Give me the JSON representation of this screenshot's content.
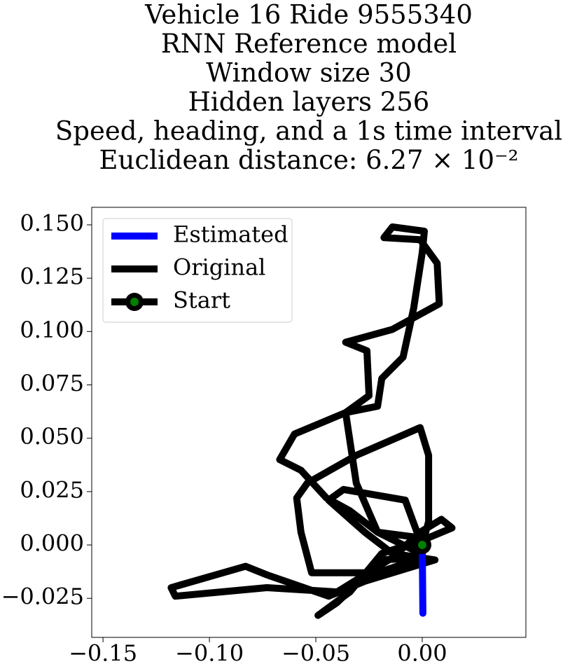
{
  "chart_data": {
    "type": "line",
    "title": [
      "Vehicle 16 Ride 9555340",
      "RNN Reference model",
      "Window size 30",
      "Hidden layers 256",
      "Speed, heading, and a 1s time interval",
      "Euclidean distance: 6.27 × 10⁻²"
    ],
    "series": [
      {
        "name": "Estimated",
        "color": "#0000ff",
        "x": [
          0,
          0.0003
        ],
        "values": [
          0,
          -0.032
        ]
      },
      {
        "name": "Original",
        "color": "#000000",
        "x": [
          0,
          0.003,
          0.003,
          -0.001,
          -0.031,
          -0.054,
          -0.059,
          -0.057,
          -0.052,
          -0.021,
          0,
          -0.019,
          -0.04,
          -0.049,
          -0.034,
          -0.019,
          -0.001,
          -0.008,
          -0.037,
          -0.044,
          -0.027,
          -0.014,
          0.006,
          -0.027,
          -0.044,
          -0.073,
          -0.083,
          -0.118,
          -0.116,
          -0.073,
          -0.04,
          -0.014,
          -0.001,
          0.009,
          0.014,
          0.002,
          -0.021,
          -0.031,
          -0.036,
          -0.021,
          -0.019,
          -0.009,
          -0.004,
          0,
          0.001,
          -0.014,
          -0.018,
          -0.001,
          0.007,
          0.008,
          -0.014,
          -0.036,
          -0.026,
          -0.025,
          -0.036,
          -0.06,
          -0.067,
          -0.057,
          -0.045,
          -0.034,
          -0.021,
          -0.001
        ],
        "values": [
          0,
          0.011,
          0.042,
          0.055,
          0.042,
          0.029,
          0.022,
          0.006,
          -0.013,
          -0.013,
          -0.006,
          -0.007,
          -0.027,
          -0.033,
          -0.022,
          -0.004,
          0.002,
          0.021,
          0.026,
          0.021,
          0.006,
          -0.004,
          -0.007,
          -0.017,
          -0.024,
          -0.014,
          -0.01,
          -0.02,
          -0.024,
          -0.02,
          -0.022,
          -0.006,
          0.006,
          0.012,
          0.008,
          0.003,
          0.006,
          0.029,
          0.062,
          0.065,
          0.078,
          0.088,
          0.111,
          0.137,
          0.147,
          0.149,
          0.144,
          0.143,
          0.132,
          0.113,
          0.101,
          0.095,
          0.091,
          0.07,
          0.062,
          0.052,
          0.04,
          0.035,
          0.022,
          0.016,
          0.006,
          -0.004
        ]
      }
    ],
    "start": {
      "name": "Start",
      "x": 0,
      "y": 0,
      "color": "#008000",
      "edge_color": "#000000"
    },
    "xlim": [
      -0.1553,
      0.0487
    ],
    "ylim": [
      -0.0433,
      0.1582
    ],
    "xticks": [
      {
        "value": -0.15,
        "label": "−0.15"
      },
      {
        "value": -0.1,
        "label": "−0.10"
      },
      {
        "value": -0.05,
        "label": "−0.05"
      },
      {
        "value": 0,
        "label": "0.00"
      }
    ],
    "yticks": [
      {
        "value": -0.025,
        "label": "−0.025"
      },
      {
        "value": 0,
        "label": "0.000"
      },
      0.025,
      {
        "value": 0.05,
        "label": "0.050"
      },
      0.075,
      {
        "value": 0.1,
        "label": "0.100"
      },
      0.125,
      {
        "value": 0.15,
        "label": "0.150"
      }
    ],
    "legend": "upper left",
    "grid": false
  }
}
